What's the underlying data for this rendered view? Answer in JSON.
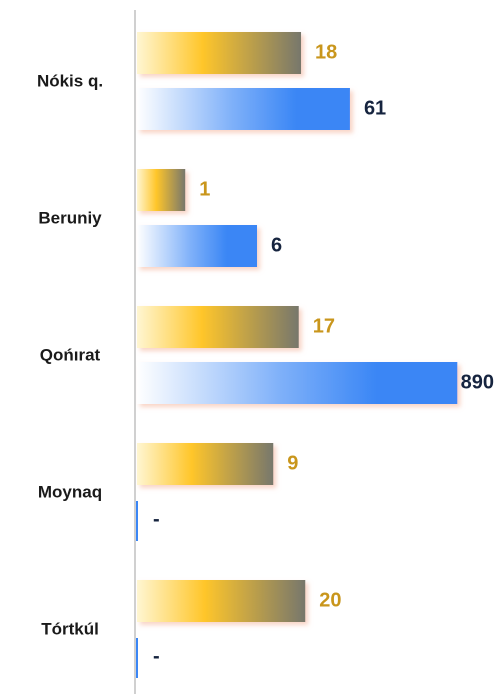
{
  "chart_data": {
    "type": "hbar",
    "log_scale": true,
    "categories": [
      "Nókis q.",
      "Beruniy",
      "Qońırat",
      "Moynaq",
      "Tórtkúl"
    ],
    "xlim": [
      0.3,
      1000
    ],
    "series": [
      {
        "color": "#f2b52a",
        "label_color": "#c9961c",
        "values": [
          18,
          1,
          17,
          9,
          20
        ]
      },
      {
        "color": "#3a86f5",
        "label_color": "#16243f",
        "values": [
          61,
          6,
          890,
          null,
          null
        ],
        "value_labels": [
          "61",
          "6",
          "890",
          "-",
          "-"
        ]
      }
    ]
  }
}
